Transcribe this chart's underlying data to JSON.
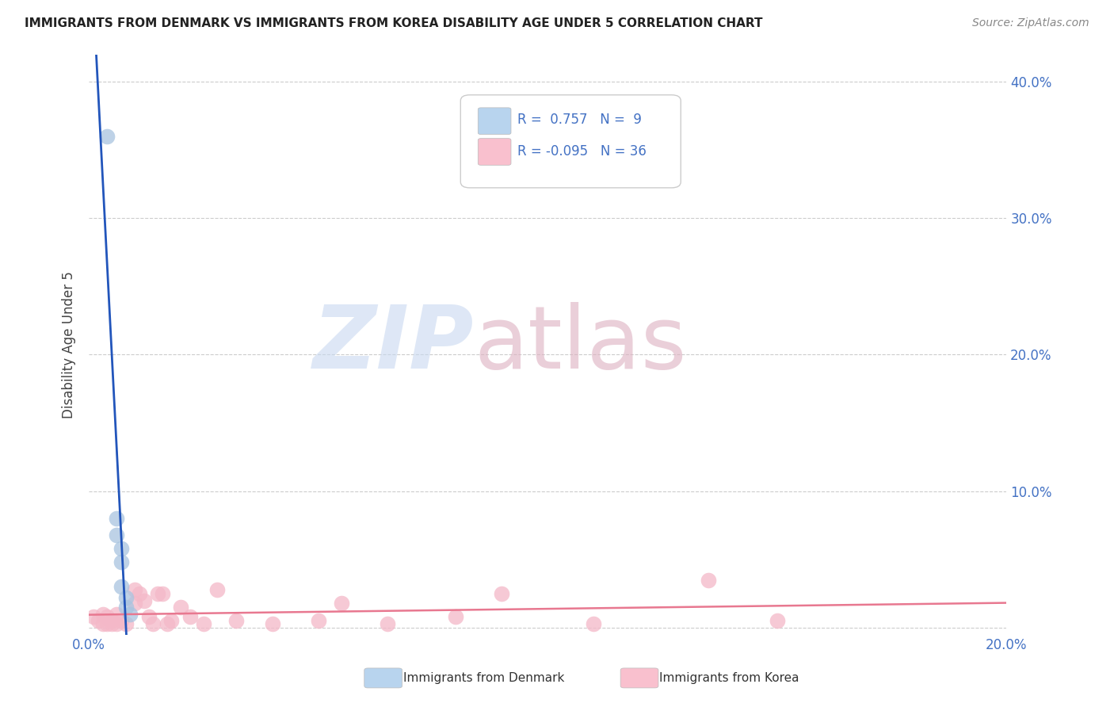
{
  "title": "IMMIGRANTS FROM DENMARK VS IMMIGRANTS FROM KOREA DISABILITY AGE UNDER 5 CORRELATION CHART",
  "source": "Source: ZipAtlas.com",
  "ylabel": "Disability Age Under 5",
  "xlim": [
    0.0,
    0.2
  ],
  "ylim": [
    -0.005,
    0.42
  ],
  "yticks": [
    0.0,
    0.1,
    0.2,
    0.3,
    0.4
  ],
  "ytick_right_labels": [
    "",
    "10.0%",
    "20.0%",
    "30.0%",
    "40.0%"
  ],
  "xticks": [
    0.0,
    0.2
  ],
  "xtick_labels": [
    "0.0%",
    "20.0%"
  ],
  "denmark_R": 0.757,
  "denmark_N": 9,
  "korea_R": -0.095,
  "korea_N": 36,
  "denmark_scatter_color": "#a8c4e0",
  "korea_scatter_color": "#f4b8c8",
  "denmark_line_color": "#2255bb",
  "korea_line_color": "#e87890",
  "denmark_legend_color": "#b8d4ee",
  "korea_legend_color": "#f9c0ce",
  "grid_color": "#cccccc",
  "watermark_zip_color": "#c8d8f0",
  "watermark_atlas_color": "#ddb0c0",
  "denmark_scatter_x": [
    0.004,
    0.006,
    0.006,
    0.007,
    0.007,
    0.007,
    0.008,
    0.008,
    0.009
  ],
  "denmark_scatter_y": [
    0.36,
    0.08,
    0.068,
    0.058,
    0.048,
    0.03,
    0.022,
    0.015,
    0.01
  ],
  "korea_scatter_x": [
    0.001,
    0.002,
    0.003,
    0.003,
    0.004,
    0.004,
    0.005,
    0.005,
    0.006,
    0.006,
    0.007,
    0.008,
    0.01,
    0.01,
    0.011,
    0.012,
    0.013,
    0.014,
    0.015,
    0.016,
    0.017,
    0.018,
    0.02,
    0.022,
    0.025,
    0.028,
    0.032,
    0.04,
    0.05,
    0.055,
    0.065,
    0.08,
    0.09,
    0.11,
    0.135,
    0.15
  ],
  "korea_scatter_y": [
    0.008,
    0.005,
    0.01,
    0.003,
    0.008,
    0.003,
    0.005,
    0.003,
    0.01,
    0.003,
    0.005,
    0.003,
    0.028,
    0.018,
    0.025,
    0.02,
    0.008,
    0.003,
    0.025,
    0.025,
    0.003,
    0.005,
    0.015,
    0.008,
    0.003,
    0.028,
    0.005,
    0.003,
    0.005,
    0.018,
    0.003,
    0.008,
    0.025,
    0.003,
    0.035,
    0.005
  ]
}
